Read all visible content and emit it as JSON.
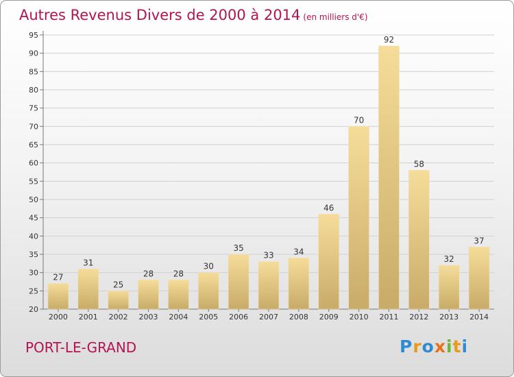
{
  "chart_data": {
    "type": "bar",
    "title": "Autres Revenus Divers de 2000 à 2014",
    "subtitle": "(en milliers d'€)",
    "categories": [
      "2000",
      "2001",
      "2002",
      "2003",
      "2004",
      "2005",
      "2006",
      "2007",
      "2008",
      "2009",
      "2010",
      "2011",
      "2012",
      "2013",
      "2014"
    ],
    "values": [
      27,
      31,
      25,
      28,
      28,
      30,
      35,
      33,
      34,
      46,
      70,
      92,
      58,
      32,
      37
    ],
    "ylim": [
      20,
      95
    ],
    "yticks": [
      20,
      25,
      30,
      35,
      40,
      45,
      50,
      55,
      60,
      65,
      70,
      75,
      80,
      85,
      90,
      95
    ],
    "grid": true,
    "bar_color": "#e3c98a"
  },
  "footer": {
    "commune": "PORT-LE-GRAND",
    "logo_letters": [
      "P",
      "r",
      "o",
      "x",
      "i",
      "t",
      "i"
    ]
  }
}
